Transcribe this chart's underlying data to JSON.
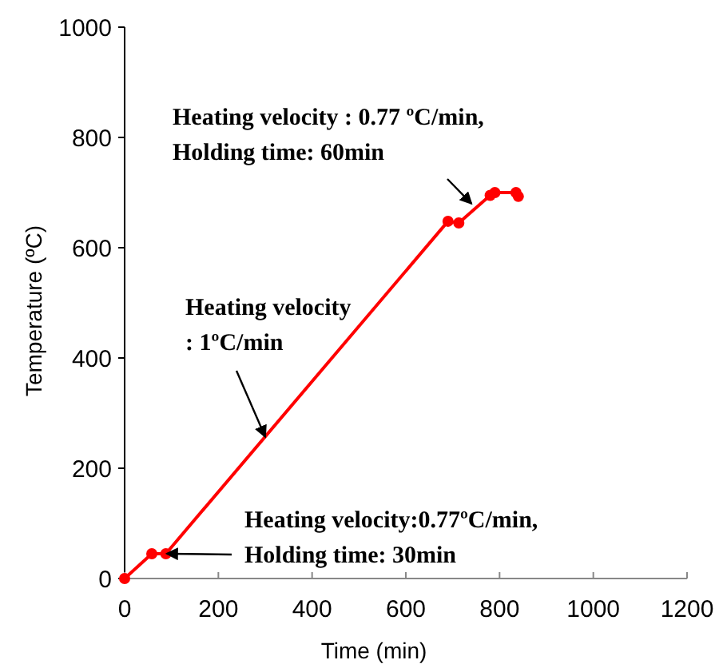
{
  "chart_data": {
    "type": "line",
    "xlabel": "Time (min)",
    "ylabel": "Temperature (ºC)",
    "xlim": [
      0,
      1200
    ],
    "xticks": [
      0,
      200,
      400,
      600,
      800,
      1000,
      1200
    ],
    "ylim": [
      0,
      1000
    ],
    "yticks": [
      0,
      200,
      400,
      600,
      800,
      1000
    ],
    "marker": "circle",
    "series": [
      {
        "color": "#ff0000",
        "x": [
          0,
          58,
          88,
          690,
          713,
          780,
          790,
          835,
          840
        ],
        "values": [
          0,
          45,
          45,
          648,
          645,
          695,
          700,
          700,
          693
        ]
      }
    ],
    "annotations": [
      {
        "text": "Heating velocity : 0.77 ºC/min,\nHolding time: 60min",
        "x": 740,
        "y": 680
      },
      {
        "text": "Heating velocity\n: 1ºC/min",
        "x": 300,
        "y": 257
      },
      {
        "text": "Heating velocity:0.77ºC/min,\nHolding time: 30min",
        "x": 90,
        "y": 45
      }
    ]
  }
}
